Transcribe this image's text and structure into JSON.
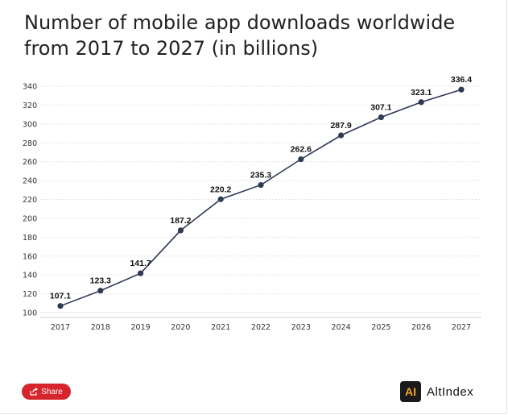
{
  "header": {
    "title": "Number of mobile app downloads worldwide from 2017 to 2027 (in billions)"
  },
  "chart_data": {
    "type": "line",
    "title": "Number of mobile app downloads worldwide from 2017 to 2027 (in billions)",
    "xlabel": "",
    "ylabel": "",
    "categories": [
      "2017",
      "2018",
      "2019",
      "2020",
      "2021",
      "2022",
      "2023",
      "2024",
      "2025",
      "2026",
      "2027"
    ],
    "series": [
      {
        "values": [
          107.1,
          123.3,
          141.7,
          187.2,
          220.2,
          235.3,
          262.6,
          287.9,
          307.1,
          323.1,
          336.4
        ],
        "labels": [
          "107.1",
          "123.3",
          "141.7",
          "187.2",
          "220.2",
          "235.3",
          "262.6",
          "287.9",
          "307.1",
          "323.1",
          "336.4"
        ]
      }
    ],
    "y_ticks": [
      "100",
      "120",
      "140",
      "160",
      "180",
      "200",
      "220",
      "240",
      "260",
      "280",
      "300",
      "320",
      "340"
    ],
    "ylim": [
      100,
      340
    ],
    "grid": true,
    "legend": "none",
    "line_color": "#2f3a55",
    "point_color": "#2f3a55"
  },
  "footer": {
    "share_label": "Share",
    "share_icon": "share-icon",
    "share_color": "#d6252c",
    "brand_mark": "AI",
    "brand_name": "AltIndex",
    "brand_accent": "#f5a623"
  }
}
